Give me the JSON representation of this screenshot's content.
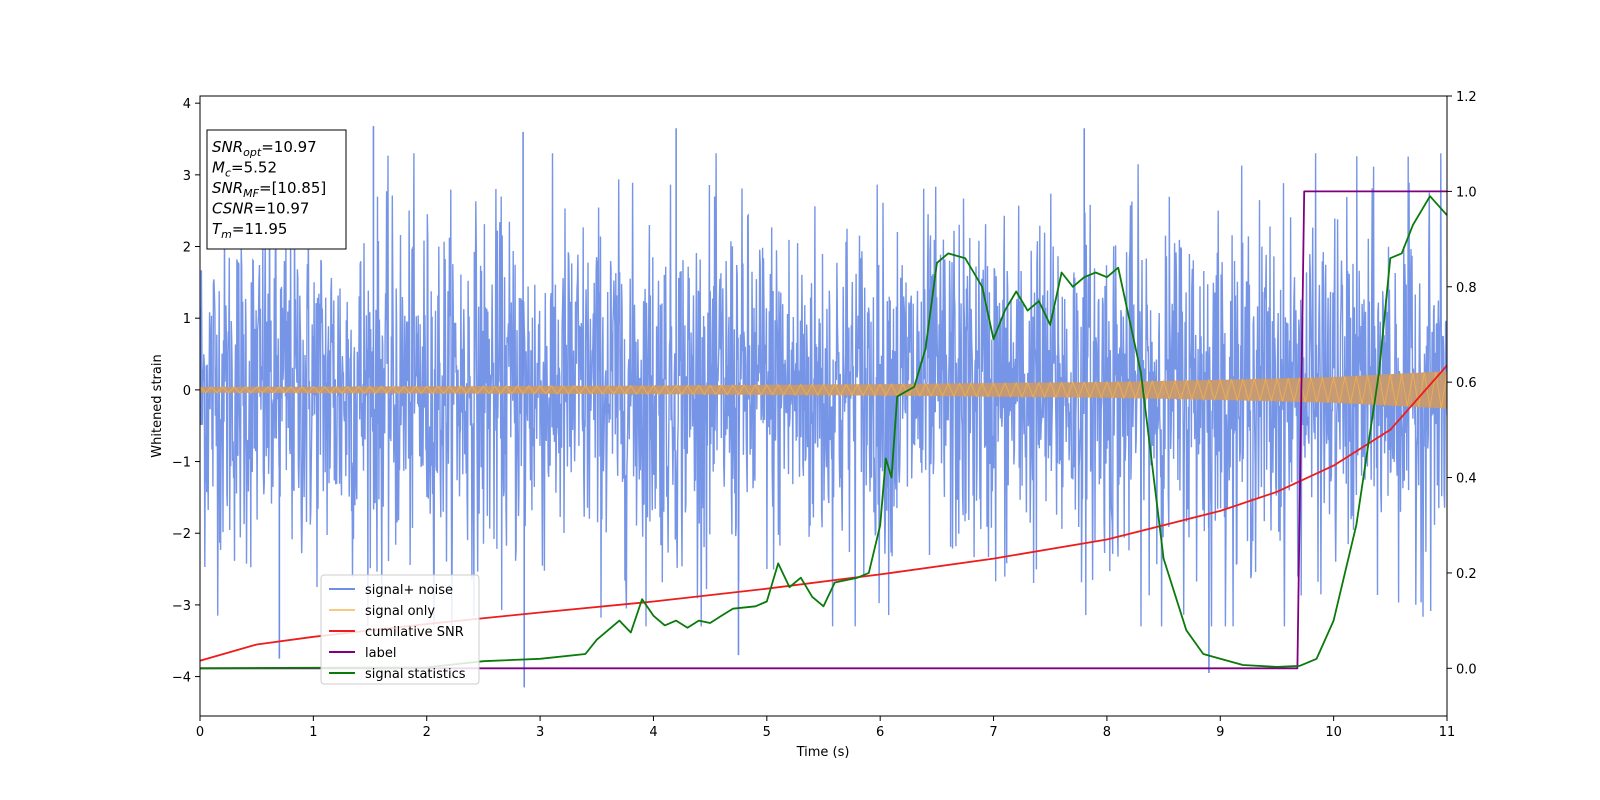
{
  "chart_data": {
    "type": "line",
    "xlabel": "Time (s)",
    "ylabel": "Whitened strain",
    "xlim": [
      0,
      11
    ],
    "ylim_left": [
      -4.55,
      4.1
    ],
    "ylim_right": [
      -0.1,
      1.2
    ],
    "x_ticks": [
      0,
      1,
      2,
      3,
      4,
      5,
      6,
      7,
      8,
      9,
      10,
      11
    ],
    "y_ticks_left": [
      -4,
      -3,
      -2,
      -1,
      0,
      1,
      2,
      3,
      4
    ],
    "y_ticks_right": [
      0.0,
      0.2,
      0.4,
      0.6,
      0.8,
      1.0,
      1.2
    ],
    "grid": false,
    "legend_position": "lower-left",
    "series": [
      {
        "name": "signal+ noise",
        "axis": "left",
        "color": "#6f8fe6",
        "style": "noise",
        "std": 1.0,
        "peak_points": [
          [
            1.53,
            3.68
          ],
          [
            2.85,
            3.6
          ],
          [
            4.2,
            3.65
          ],
          [
            7.8,
            3.65
          ],
          [
            2.86,
            -4.15
          ],
          [
            8.9,
            -3.95
          ],
          [
            0.7,
            -3.75
          ],
          [
            4.75,
            -3.7
          ]
        ]
      },
      {
        "name": "signal only",
        "axis": "left",
        "color": "#f5b04a",
        "style": "chirp",
        "amplitude_points": [
          [
            0,
            0.04
          ],
          [
            2,
            0.05
          ],
          [
            4,
            0.06
          ],
          [
            6,
            0.08
          ],
          [
            8,
            0.11
          ],
          [
            9,
            0.14
          ],
          [
            10,
            0.18
          ],
          [
            11,
            0.26
          ]
        ]
      },
      {
        "name": "cumilative SNR",
        "axis": "right",
        "color": "#ee1c1c",
        "points": [
          [
            0,
            0.016
          ],
          [
            0.5,
            0.05
          ],
          [
            1,
            0.066
          ],
          [
            2,
            0.093
          ],
          [
            3,
            0.117
          ],
          [
            4,
            0.14
          ],
          [
            5,
            0.167
          ],
          [
            6,
            0.197
          ],
          [
            7,
            0.23
          ],
          [
            8,
            0.27
          ],
          [
            9,
            0.33
          ],
          [
            9.5,
            0.37
          ],
          [
            10,
            0.425
          ],
          [
            10.5,
            0.5
          ],
          [
            11,
            0.635
          ]
        ]
      },
      {
        "name": "label",
        "axis": "right",
        "color": "#800080",
        "points": [
          [
            0,
            0.0
          ],
          [
            9.68,
            0.0
          ],
          [
            9.74,
            1.0
          ],
          [
            11,
            1.0
          ]
        ]
      },
      {
        "name": "signal statistics",
        "axis": "right",
        "color": "#0a7a0a",
        "points": [
          [
            0,
            0.0
          ],
          [
            1,
            0.001
          ],
          [
            2,
            0.002
          ],
          [
            2.5,
            0.015
          ],
          [
            3,
            0.02
          ],
          [
            3.4,
            0.03
          ],
          [
            3.5,
            0.06
          ],
          [
            3.7,
            0.1
          ],
          [
            3.8,
            0.075
          ],
          [
            3.9,
            0.145
          ],
          [
            4.0,
            0.11
          ],
          [
            4.1,
            0.09
          ],
          [
            4.2,
            0.1
          ],
          [
            4.3,
            0.085
          ],
          [
            4.4,
            0.1
          ],
          [
            4.5,
            0.095
          ],
          [
            4.6,
            0.11
          ],
          [
            4.7,
            0.125
          ],
          [
            4.9,
            0.13
          ],
          [
            5.0,
            0.14
          ],
          [
            5.1,
            0.22
          ],
          [
            5.2,
            0.17
          ],
          [
            5.3,
            0.19
          ],
          [
            5.4,
            0.15
          ],
          [
            5.5,
            0.13
          ],
          [
            5.6,
            0.18
          ],
          [
            5.8,
            0.19
          ],
          [
            5.9,
            0.2
          ],
          [
            6.0,
            0.3
          ],
          [
            6.05,
            0.44
          ],
          [
            6.1,
            0.4
          ],
          [
            6.15,
            0.57
          ],
          [
            6.3,
            0.59
          ],
          [
            6.4,
            0.67
          ],
          [
            6.5,
            0.85
          ],
          [
            6.6,
            0.87
          ],
          [
            6.75,
            0.86
          ],
          [
            6.9,
            0.8
          ],
          [
            7.0,
            0.69
          ],
          [
            7.1,
            0.75
          ],
          [
            7.2,
            0.79
          ],
          [
            7.3,
            0.75
          ],
          [
            7.4,
            0.77
          ],
          [
            7.5,
            0.72
          ],
          [
            7.6,
            0.83
          ],
          [
            7.7,
            0.8
          ],
          [
            7.8,
            0.82
          ],
          [
            7.9,
            0.83
          ],
          [
            8.0,
            0.82
          ],
          [
            8.1,
            0.84
          ],
          [
            8.3,
            0.62
          ],
          [
            8.5,
            0.23
          ],
          [
            8.7,
            0.08
          ],
          [
            8.85,
            0.03
          ],
          [
            9.0,
            0.02
          ],
          [
            9.2,
            0.007
          ],
          [
            9.5,
            0.003
          ],
          [
            9.7,
            0.005
          ],
          [
            9.85,
            0.02
          ],
          [
            10.0,
            0.1
          ],
          [
            10.2,
            0.3
          ],
          [
            10.4,
            0.62
          ],
          [
            10.5,
            0.86
          ],
          [
            10.6,
            0.87
          ],
          [
            10.7,
            0.93
          ],
          [
            10.85,
            0.99
          ],
          [
            11.0,
            0.95
          ]
        ]
      }
    ],
    "annotation": {
      "lines": [
        {
          "base": "SNR",
          "sub": "opt",
          "value": "=10.97"
        },
        {
          "base": "M",
          "sub": "c",
          "value": "=5.52"
        },
        {
          "base": "SNR",
          "sub": "MF",
          "value": "=[10.85]"
        },
        {
          "base": "CSNR",
          "sub": "",
          "value": "=10.97"
        },
        {
          "base": "T",
          "sub": "m",
          "value": "=11.95"
        }
      ]
    }
  }
}
